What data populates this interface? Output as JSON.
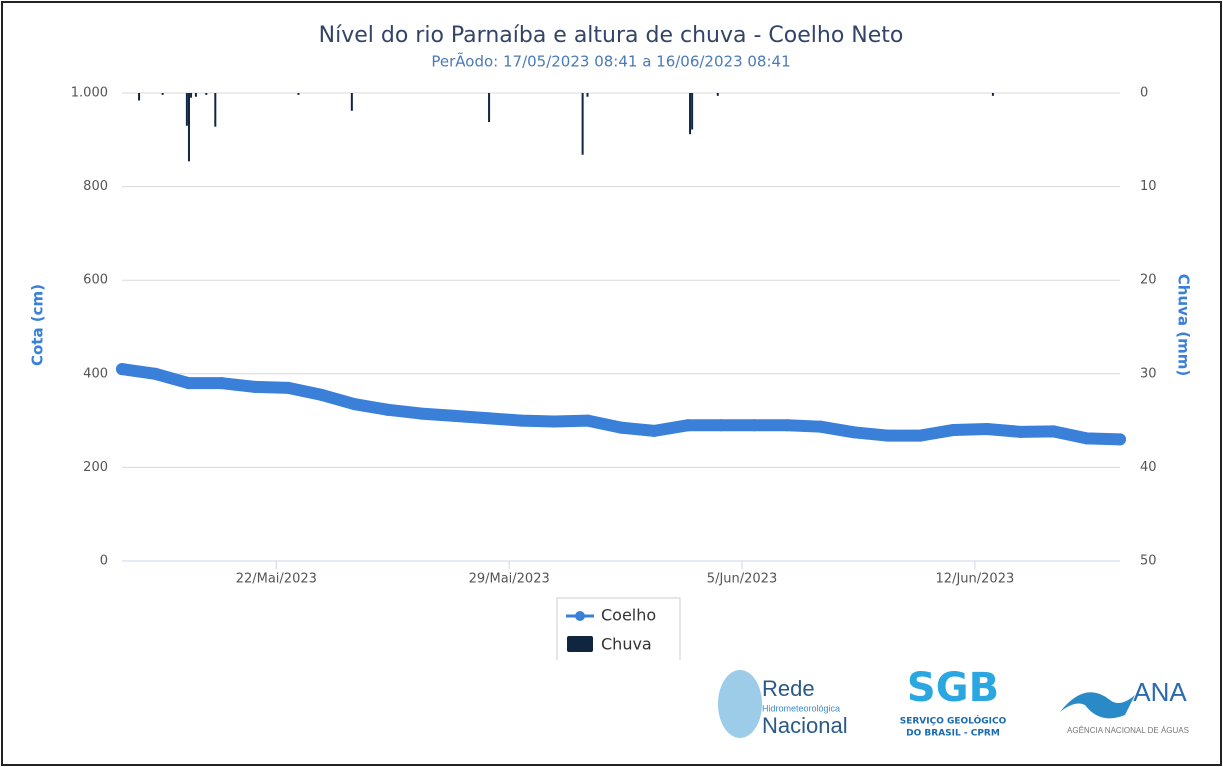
{
  "chart_data": {
    "type": "line-bar",
    "title": "Nível do rio Parnaíba e altura de chuva - Coelho Neto",
    "subtitle": "PerÃodo: 17/05/2023 08:41 a 16/06/2023 08:41",
    "ylabel": "Cota (cm)",
    "y2label": "Chuva (mm)",
    "xlim": [
      "2023-05-17T08:41",
      "2023-06-16T08:41"
    ],
    "xticks": [
      {
        "value": "2023-05-22T00:00",
        "label": "22/Mai/2023"
      },
      {
        "value": "2023-05-29T00:00",
        "label": "29/Mai/2023"
      },
      {
        "value": "2023-06-05T00:00",
        "label": "5/Jun/2023"
      },
      {
        "value": "2023-06-12T00:00",
        "label": "12/Jun/2023"
      }
    ],
    "ylim": [
      0,
      1000
    ],
    "yticks": [
      0,
      200,
      400,
      600,
      800,
      {
        "value": 1000,
        "label": "1.000"
      }
    ],
    "y2lim": [
      50,
      0
    ],
    "y2ticks": [
      0,
      10,
      20,
      30,
      40,
      50
    ],
    "grid": true,
    "legend": "bottom",
    "series": [
      {
        "name": "Coelho",
        "type": "line",
        "color": "#3a80d9",
        "x": [
          "2023-05-17T08:41",
          "2023-05-18T08:41",
          "2023-05-19T08:41",
          "2023-05-20T08:41",
          "2023-05-21T08:41",
          "2023-05-22T08:41",
          "2023-05-23T08:41",
          "2023-05-24T08:41",
          "2023-05-25T08:41",
          "2023-05-26T08:41",
          "2023-05-27T08:41",
          "2023-05-28T08:41",
          "2023-05-29T08:41",
          "2023-05-30T08:41",
          "2023-05-31T08:41",
          "2023-06-01T08:41",
          "2023-06-02T08:41",
          "2023-06-03T08:41",
          "2023-06-04T08:41",
          "2023-06-05T08:41",
          "2023-06-06T08:41",
          "2023-06-07T08:41",
          "2023-06-08T08:41",
          "2023-06-09T08:41",
          "2023-06-10T08:41",
          "2023-06-11T08:41",
          "2023-06-12T08:41",
          "2023-06-13T08:41",
          "2023-06-14T08:41",
          "2023-06-15T08:41",
          "2023-06-16T08:41"
        ],
        "values": [
          410,
          400,
          380,
          380,
          372,
          370,
          355,
          335,
          323,
          315,
          310,
          305,
          300,
          298,
          300,
          285,
          278,
          290,
          290,
          290,
          290,
          287,
          275,
          268,
          268,
          280,
          282,
          276,
          277,
          262,
          260
        ]
      },
      {
        "name": "Chuva",
        "type": "bar",
        "axis": "y2",
        "color": "#0f2540",
        "x": [
          "2023-05-17T21:00",
          "2023-05-18T14:00",
          "2023-05-19T07:30",
          "2023-05-19T09:00",
          "2023-05-19T10:30",
          "2023-05-19T14:00",
          "2023-05-19T21:30",
          "2023-05-20T04:00",
          "2023-05-22T16:00",
          "2023-05-24T06:30",
          "2023-05-28T09:30",
          "2023-05-31T05:00",
          "2023-05-31T08:30",
          "2023-06-03T10:30",
          "2023-06-03T12:00",
          "2023-06-04T06:30",
          "2023-06-12T13:00"
        ],
        "values": [
          0.8,
          0.2,
          3.5,
          7.3,
          0.5,
          0.4,
          0.2,
          3.6,
          0.2,
          1.9,
          3.1,
          6.6,
          0.4,
          4.4,
          3.9,
          0.3,
          0.3
        ]
      }
    ]
  },
  "logos": {
    "rede": [
      "Rede",
      "Hidrometeorológica",
      "Nacional"
    ],
    "sgb": [
      "SGB",
      "SERVIÇO GEOLÓGICO",
      "DO BRASIL - CPRM"
    ],
    "ana": [
      "ANA",
      "AGÊNCIA NACIONAL DE ÁGUAS"
    ]
  }
}
